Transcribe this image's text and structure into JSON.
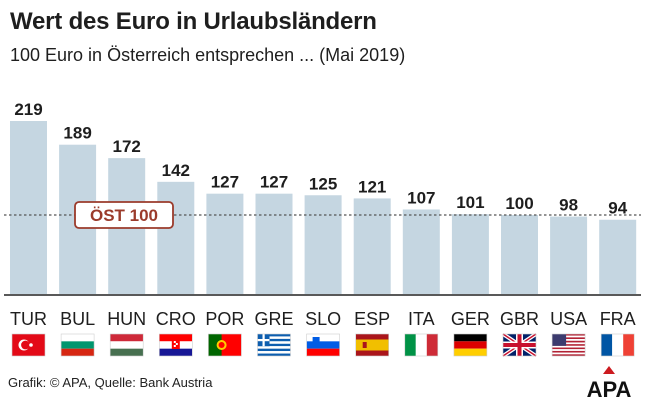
{
  "title": "Wert des Euro in Urlaubsländern",
  "subtitle": "100 Euro in Österreich entsprechen ... (Mai 2019)",
  "source": "Grafik: © APA, Quelle: Bank Austria",
  "logo_text": "APA",
  "colors": {
    "bar": "#c5d6e1",
    "reference_line": "#555555",
    "reference_label": "#9b3b2b",
    "logo_red": "#cc1a1f"
  },
  "chart_data": {
    "type": "bar",
    "categories": [
      "TUR",
      "BUL",
      "HUN",
      "CRO",
      "POR",
      "GRE",
      "SLO",
      "ESP",
      "ITA",
      "GER",
      "GBR",
      "USA",
      "FRA"
    ],
    "values": [
      219,
      189,
      172,
      142,
      127,
      127,
      125,
      121,
      107,
      101,
      100,
      98,
      94
    ],
    "value_labels": [
      "219",
      "189",
      "172",
      "142",
      "127",
      "127",
      "125",
      "121",
      "107",
      "101",
      "100",
      "98",
      "94"
    ],
    "reference": {
      "value": 100,
      "label": "ÖST 100"
    },
    "flags": [
      "turkey",
      "bulgaria",
      "hungary",
      "croatia",
      "portugal",
      "greece",
      "slovenia",
      "spain",
      "italy",
      "germany",
      "united-kingdom",
      "usa",
      "france"
    ],
    "ylim": [
      0,
      219
    ]
  }
}
